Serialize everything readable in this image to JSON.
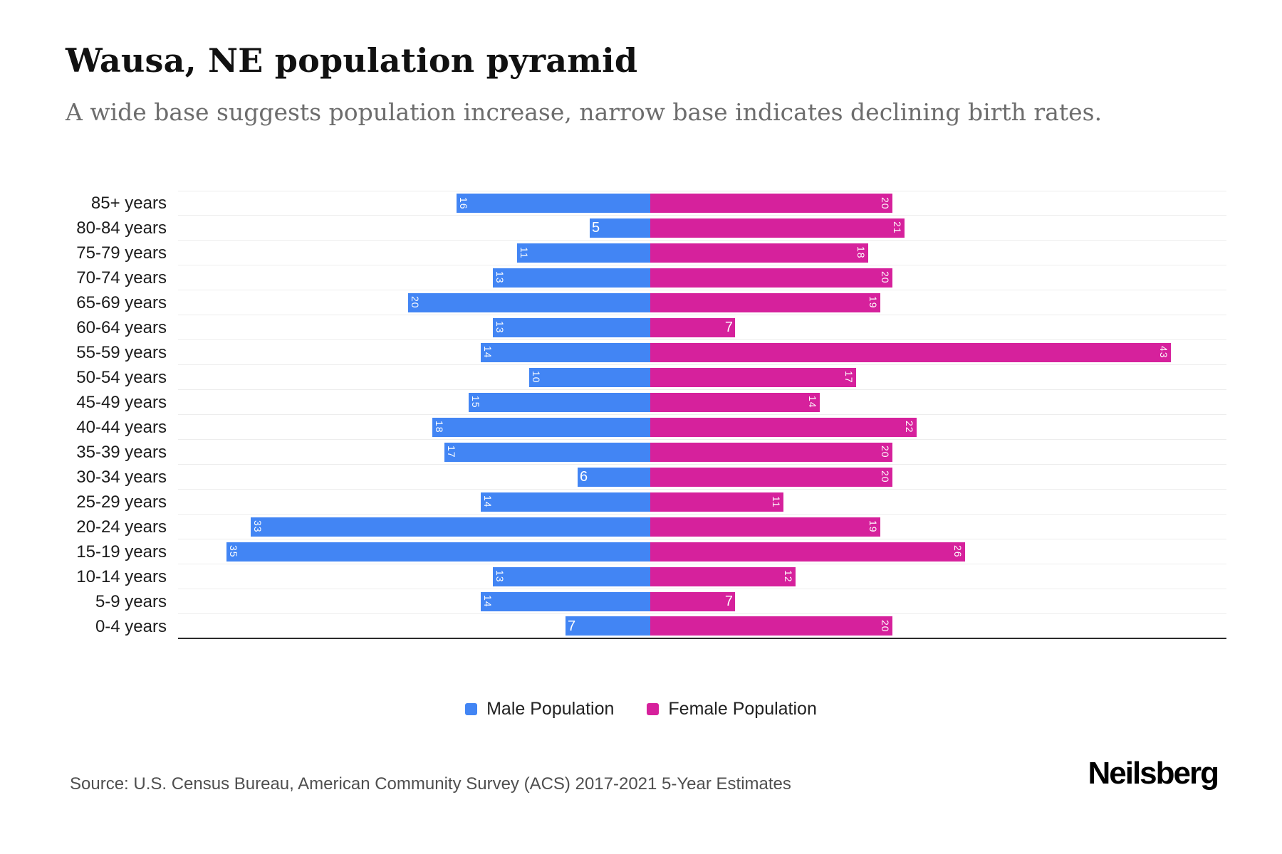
{
  "title": "Wausa, NE population pyramid",
  "subtitle": "A wide base suggests population increase, narrow base indicates declining birth rates.",
  "legend": {
    "male": "Male Population",
    "female": "Female Population"
  },
  "source": "Source: U.S. Census Bureau, American Community Survey (ACS) 2017-2021 5-Year Estimates",
  "logo": "Neilsberg",
  "colors": {
    "male": "#4285F4",
    "female": "#D6219C",
    "axis": "#2b2b2b",
    "grid": "#ededed"
  },
  "chart_data": {
    "type": "bar",
    "variant": "population-pyramid",
    "orientation": "horizontal",
    "grid": "horizontal",
    "value_labels": "inside-end",
    "categories": [
      "85+ years",
      "80-84 years",
      "75-79 years",
      "70-74 years",
      "65-69 years",
      "60-64 years",
      "55-59 years",
      "50-54 years",
      "45-49 years",
      "40-44 years",
      "35-39 years",
      "30-34 years",
      "25-29 years",
      "20-24 years",
      "15-19 years",
      "10-14 years",
      "5-9 years",
      "0-4 years"
    ],
    "series": [
      {
        "name": "Male Population",
        "side": "left",
        "color": "#4285F4",
        "values": [
          16,
          5,
          11,
          13,
          20,
          13,
          14,
          10,
          15,
          18,
          17,
          6,
          14,
          33,
          35,
          13,
          14,
          7
        ]
      },
      {
        "name": "Female Population",
        "side": "right",
        "color": "#D6219C",
        "values": [
          20,
          21,
          18,
          20,
          19,
          7,
          43,
          17,
          14,
          22,
          20,
          20,
          11,
          19,
          26,
          12,
          7,
          20
        ]
      }
    ],
    "xlim_left": [
      0,
      39
    ],
    "xlim_right": [
      0,
      47
    ]
  }
}
